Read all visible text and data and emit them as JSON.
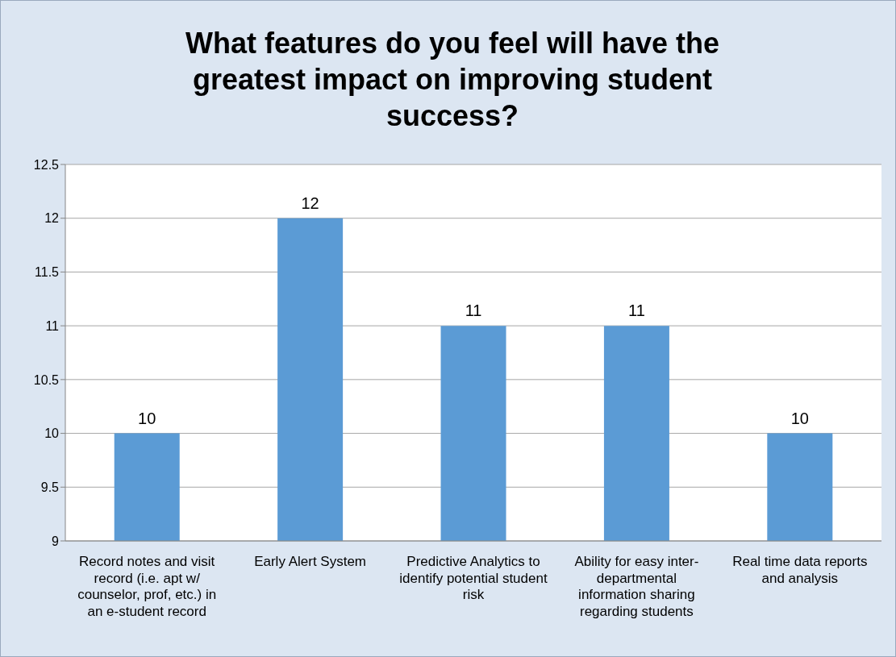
{
  "chart_data": {
    "type": "bar",
    "title": "What features do you feel will have the greatest impact on improving student success?",
    "categories": [
      "Record notes and visit record (i.e. apt w/ counselor, prof, etc.) in an e-student record",
      "Early Alert System",
      "Predictive Analytics to identify potential student risk",
      "Ability for easy inter-departmental information sharing regarding students",
      "Real time data reports and analysis"
    ],
    "values": [
      10,
      12,
      11,
      11,
      10
    ],
    "color": "#5b9bd5",
    "ylim": [
      9,
      12.5
    ],
    "yticks": [
      9,
      9.5,
      10,
      10.5,
      11,
      11.5,
      12,
      12.5
    ],
    "grid": "y",
    "data_labels": true
  }
}
